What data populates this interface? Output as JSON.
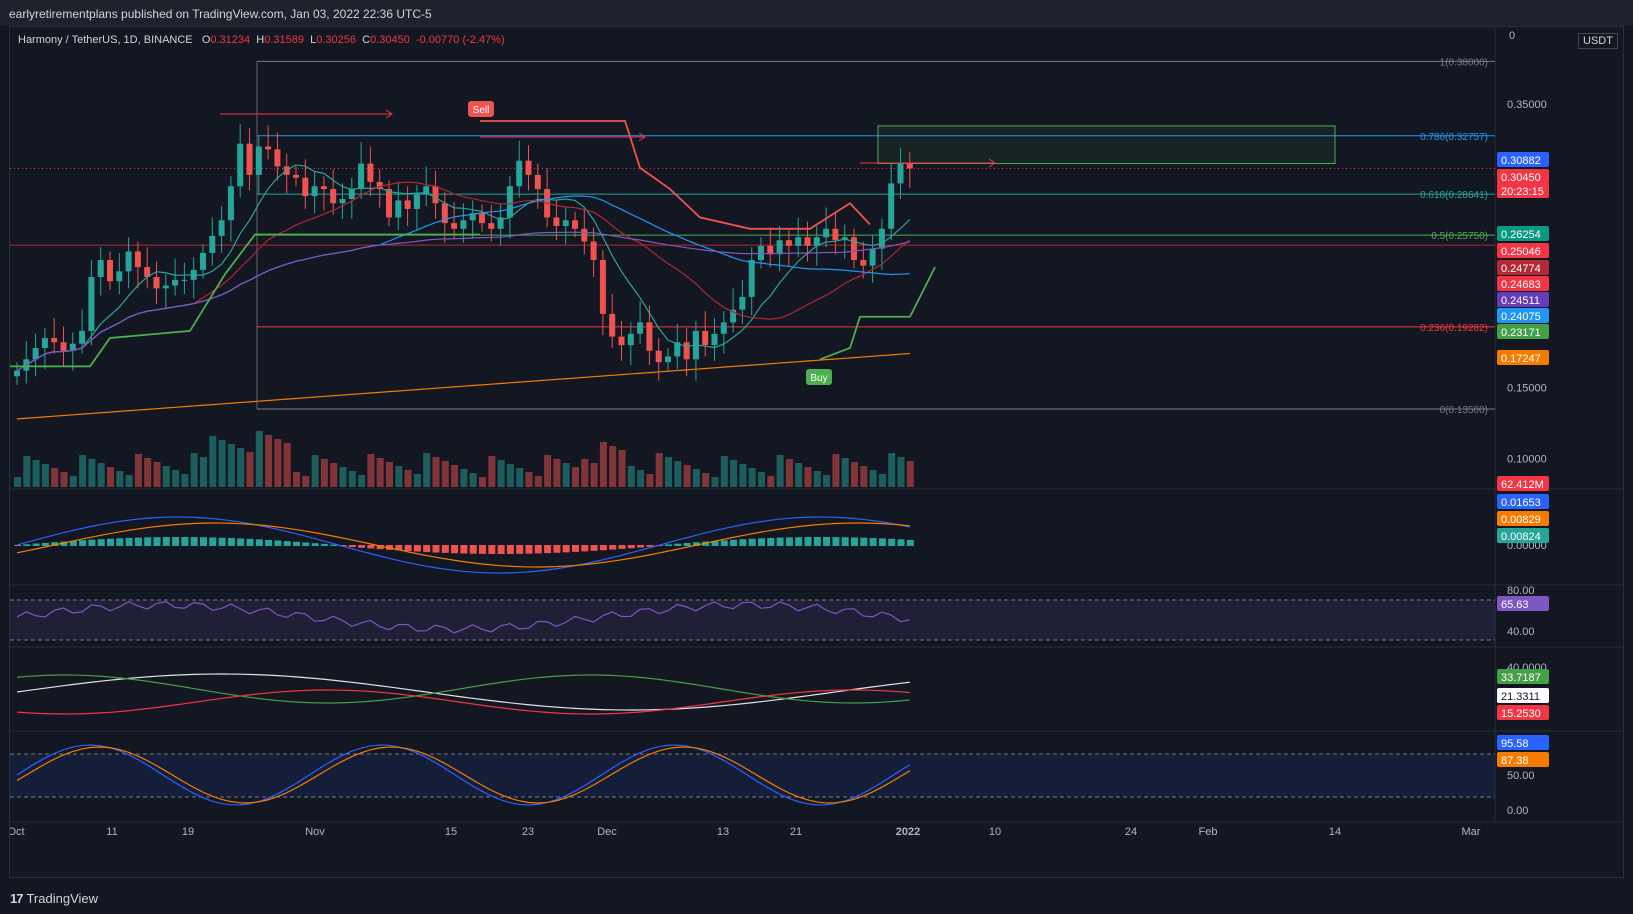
{
  "header": {
    "publisher_text": "earlyretirementplans published on TradingView.com, Jan 03, 2022 22:36 UTC-5"
  },
  "legend": {
    "pair": "Harmony / TetherUS, 1D, BINANCE",
    "o_label": "O",
    "o_value": "0.31234",
    "h_label": "H",
    "h_value": "0.31589",
    "l_label": "L",
    "l_value": "0.30256",
    "c_label": "C",
    "c_value": "0.30450",
    "change": "-0.00770 (-2.47%)"
  },
  "price_scale": {
    "currency": "USDT",
    "zero_label": "0",
    "ticks": [
      "0.35000",
      "0.15000",
      "0.10000"
    ]
  },
  "fib_levels": [
    {
      "label": "1(0.38000)",
      "color": "#787b86"
    },
    {
      "label": "0.786(0.32757)",
      "color": "#2196f3"
    },
    {
      "label": "0.618(0.28641)",
      "color": "#26a69a"
    },
    {
      "label": "0.5(0.25750)",
      "color": "#4caf50"
    },
    {
      "label": "0.236(0.19282)",
      "color": "#f23645"
    },
    {
      "label": "0(0.13500)",
      "color": "#787b86"
    }
  ],
  "price_tags": [
    {
      "text": "0.30882",
      "color": "#2962ff"
    },
    {
      "text": "0.30450",
      "color": "#f23645"
    },
    {
      "text": "20:23:15",
      "color": "#f23645"
    },
    {
      "text": "0.26254",
      "color": "#089981"
    },
    {
      "text": "0.25046",
      "color": "#f23645"
    },
    {
      "text": "0.24774",
      "color": "#b22833"
    },
    {
      "text": "0.24683",
      "color": "#f23645"
    },
    {
      "text": "0.24511",
      "color": "#673ab7"
    },
    {
      "text": "0.24075",
      "color": "#2196f3"
    },
    {
      "text": "0.23171",
      "color": "#43a047"
    },
    {
      "text": "0.17247",
      "color": "#f57c00"
    },
    {
      "text": "62.412M",
      "color": "#f23645"
    }
  ],
  "signals": {
    "sell": "Sell",
    "buy": "Buy"
  },
  "macd_pane": {
    "tags": [
      {
        "text": "0.01653",
        "color": "#2962ff"
      },
      {
        "text": "0.00829",
        "color": "#f57c00"
      },
      {
        "text": "0.00824",
        "color": "#26a69a"
      }
    ],
    "zero_tick": "0.00000"
  },
  "rsi_pane": {
    "ticks": [
      "80.00",
      "40.00"
    ],
    "tag": {
      "text": "65.63",
      "color": "#7e57c2"
    }
  },
  "dmi_pane": {
    "tick": "40.0000",
    "tags": [
      {
        "text": "33.7187",
        "color": "#43a047"
      },
      {
        "text": "21.3311",
        "color": "#ffffff"
      },
      {
        "text": "15.2530",
        "color": "#f23645"
      }
    ]
  },
  "stoch_pane": {
    "ticks": [
      "50.00",
      "0.00"
    ],
    "tags": [
      {
        "text": "95.58",
        "color": "#2962ff"
      },
      {
        "text": "87.38",
        "color": "#f57c00"
      }
    ]
  },
  "time_axis": [
    "Oct",
    "11",
    "19",
    "Nov",
    "15",
    "23",
    "Dec",
    "13",
    "21",
    "2022",
    "10",
    "24",
    "Feb",
    "14",
    "Mar"
  ],
  "footer": {
    "brand": "TradingView",
    "logo_mark": "17"
  },
  "chart_data": {
    "type": "candlestick",
    "title": "Harmony / TetherUS, 1D, BINANCE",
    "ylabel": "USDT",
    "ylim": [
      0.08,
      0.4
    ],
    "x_labels": [
      "Oct",
      "11",
      "19",
      "Nov",
      "15",
      "23",
      "Dec",
      "13",
      "21",
      "2022",
      "10",
      "24",
      "Feb",
      "14",
      "Mar"
    ],
    "closes": [
      0.162,
      0.17,
      0.178,
      0.185,
      0.182,
      0.176,
      0.181,
      0.19,
      0.228,
      0.24,
      0.225,
      0.232,
      0.246,
      0.235,
      0.228,
      0.22,
      0.222,
      0.226,
      0.226,
      0.233,
      0.245,
      0.257,
      0.268,
      0.292,
      0.322,
      0.3,
      0.32,
      0.318,
      0.306,
      0.3,
      0.298,
      0.285,
      0.292,
      0.29,
      0.28,
      0.283,
      0.29,
      0.308,
      0.295,
      0.29,
      0.27,
      0.282,
      0.276,
      0.286,
      0.292,
      0.28,
      0.266,
      0.262,
      0.268,
      0.273,
      0.266,
      0.262,
      0.27,
      0.292,
      0.31,
      0.3,
      0.29,
      0.27,
      0.264,
      0.268,
      0.262,
      0.253,
      0.24,
      0.202,
      0.186,
      0.18,
      0.188,
      0.196,
      0.176,
      0.168,
      0.172,
      0.182,
      0.17,
      0.19,
      0.18,
      0.188,
      0.196,
      0.205,
      0.214,
      0.24,
      0.25,
      0.244,
      0.254,
      0.25,
      0.256,
      0.25,
      0.256,
      0.262,
      0.254,
      0.256,
      0.24,
      0.236,
      0.248,
      0.262,
      0.294,
      0.308,
      0.3045
    ]
  }
}
